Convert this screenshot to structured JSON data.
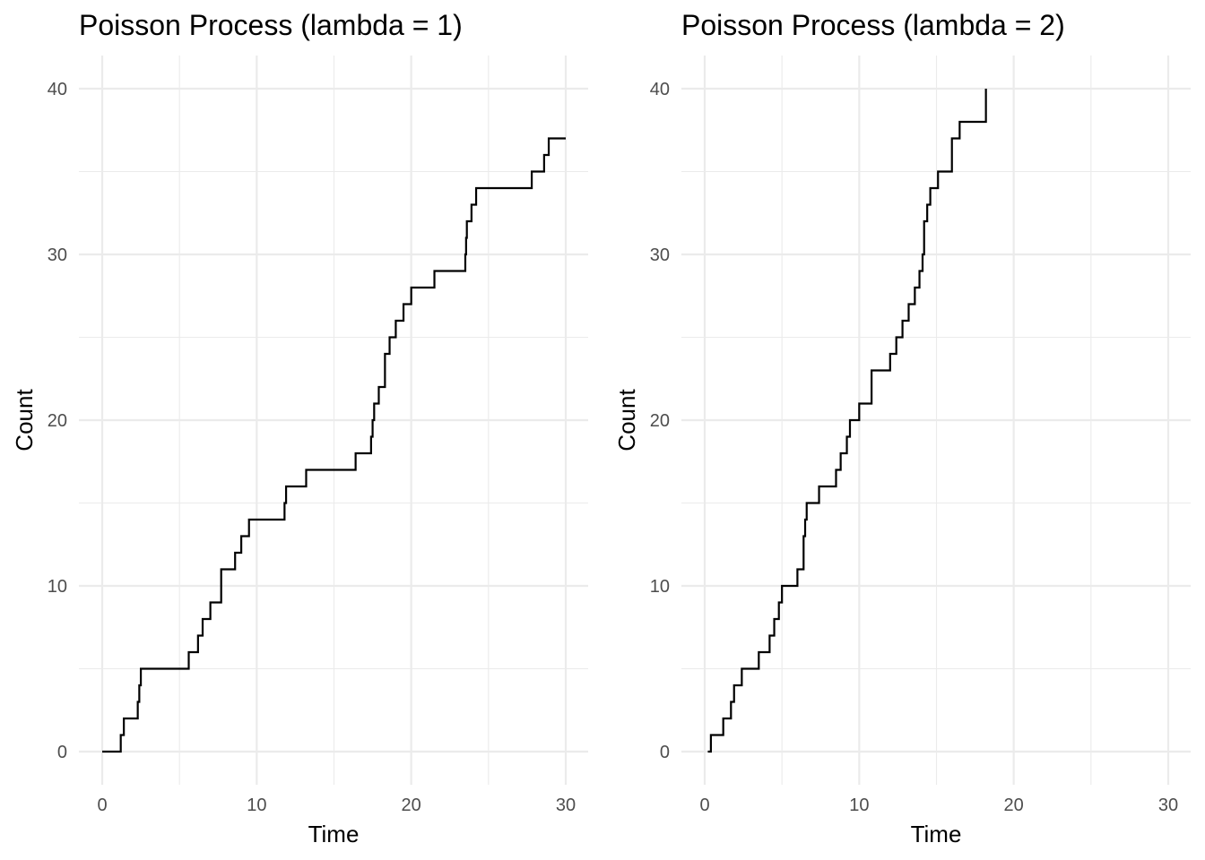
{
  "chart_data": [
    {
      "type": "line",
      "step": "hv",
      "title": "Poisson Process (lambda = 1)",
      "xlabel": "Time",
      "ylabel": "Count",
      "xlim": [
        0,
        30
      ],
      "ylim": [
        0,
        40
      ],
      "x_ticks": [
        0,
        10,
        20,
        30
      ],
      "y_ticks": [
        0,
        10,
        20,
        30,
        40
      ],
      "x_tick_labels": [
        "0",
        "10",
        "20",
        "30"
      ],
      "y_tick_labels": [
        "0",
        "10",
        "20",
        "30",
        "40"
      ],
      "grid": true,
      "series": [
        {
          "name": "lambda = 1",
          "x": [
            0,
            1.2,
            1.4,
            2.3,
            2.4,
            2.5,
            5.6,
            6.2,
            6.5,
            7.0,
            7.7,
            8.6,
            9.0,
            9.5,
            11.8,
            11.9,
            13.2,
            16.4,
            17.4,
            17.5,
            17.6,
            17.9,
            18.3,
            18.6,
            19.0,
            19.5,
            20.0,
            21.5,
            23.5,
            23.55,
            23.6,
            23.9,
            24.2,
            27.8,
            28.6,
            28.9,
            30.0
          ],
          "y": [
            0,
            1,
            2,
            3,
            4,
            5,
            6,
            7,
            8,
            9,
            11,
            12,
            13,
            14,
            15,
            16,
            17,
            18,
            19,
            20,
            21,
            22,
            24,
            25,
            26,
            27,
            28,
            29,
            30,
            31,
            32,
            33,
            34,
            35,
            36,
            37,
            37
          ]
        }
      ]
    },
    {
      "type": "line",
      "step": "hv",
      "title": "Poisson Process (lambda = 2)",
      "xlabel": "Time",
      "ylabel": "Count",
      "xlim": [
        0,
        30
      ],
      "ylim": [
        0,
        40
      ],
      "x_ticks": [
        0,
        10,
        20,
        30
      ],
      "y_ticks": [
        0,
        10,
        20,
        30,
        40
      ],
      "x_tick_labels": [
        "0",
        "10",
        "20",
        "30"
      ],
      "y_tick_labels": [
        "0",
        "10",
        "20",
        "30",
        "40"
      ],
      "grid": true,
      "series": [
        {
          "name": "lambda = 2",
          "x": [
            0.2,
            0.4,
            1.2,
            1.7,
            1.9,
            2.4,
            3.5,
            4.2,
            4.5,
            4.8,
            5.0,
            6.0,
            6.4,
            6.5,
            6.6,
            7.4,
            8.5,
            8.8,
            9.2,
            9.4,
            10.0,
            10.8,
            12.0,
            12.4,
            12.8,
            13.2,
            13.6,
            13.9,
            14.1,
            14.2,
            14.4,
            14.6,
            15.1,
            16.0,
            16.5,
            18.2,
            18.2
          ],
          "y": [
            0,
            1,
            2,
            3,
            4,
            5,
            6,
            7,
            8,
            9,
            10,
            11,
            13,
            14,
            15,
            16,
            17,
            18,
            19,
            20,
            21,
            23,
            24,
            25,
            26,
            27,
            28,
            29,
            30,
            32,
            33,
            34,
            35,
            37,
            38,
            39,
            40
          ]
        }
      ]
    }
  ]
}
